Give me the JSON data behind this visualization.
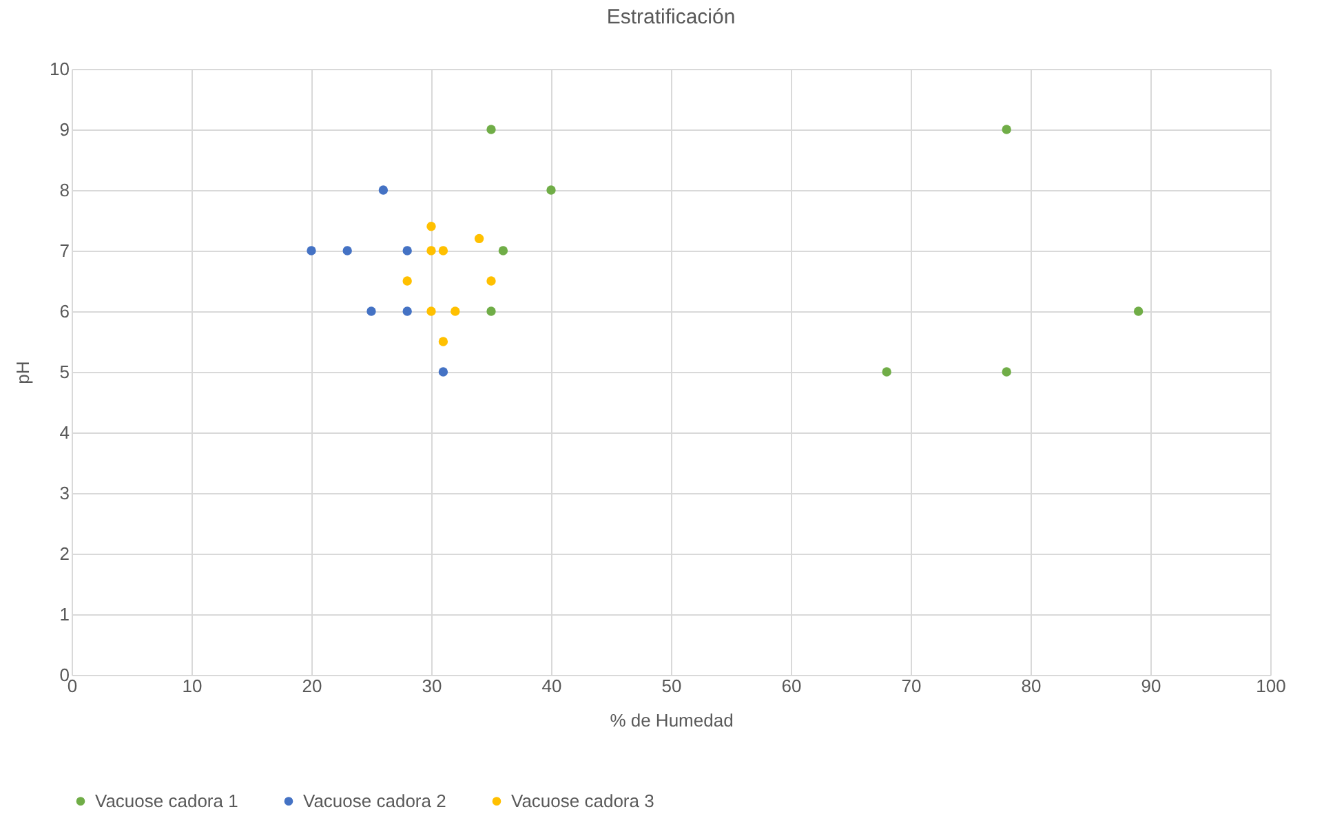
{
  "chart_data": {
    "type": "scatter",
    "title": "Estratificación",
    "xlabel": "% de Humedad",
    "ylabel": "pH",
    "xlim": [
      0,
      100
    ],
    "xticks": [
      0,
      10,
      20,
      30,
      40,
      50,
      60,
      70,
      80,
      90,
      100
    ],
    "ylim": [
      0,
      10
    ],
    "yticks": [
      0,
      1,
      2,
      3,
      4,
      5,
      6,
      7,
      8,
      9,
      10
    ],
    "grid": true,
    "legend": "bottom",
    "marker": "circle",
    "series": [
      {
        "name": "Vacuose cadora 1",
        "color": "#70ad47",
        "x": [
          35,
          78,
          40,
          36,
          35,
          89,
          68,
          78
        ],
        "values": [
          9,
          9,
          8,
          7,
          6,
          6,
          5,
          5
        ]
      },
      {
        "name": "Vacuose cadora 2",
        "color": "#4472c4",
        "x": [
          26,
          20,
          23,
          28,
          25,
          28,
          31
        ],
        "values": [
          8,
          7,
          7,
          7,
          6,
          6,
          5
        ]
      },
      {
        "name": "Vacuose cadora 3",
        "color": "#ffc000",
        "x": [
          30,
          34,
          30,
          31,
          28,
          35,
          30,
          32,
          31
        ],
        "values": [
          7.4,
          7.2,
          7,
          7,
          6.5,
          6.5,
          6,
          6,
          5.5
        ]
      }
    ]
  }
}
